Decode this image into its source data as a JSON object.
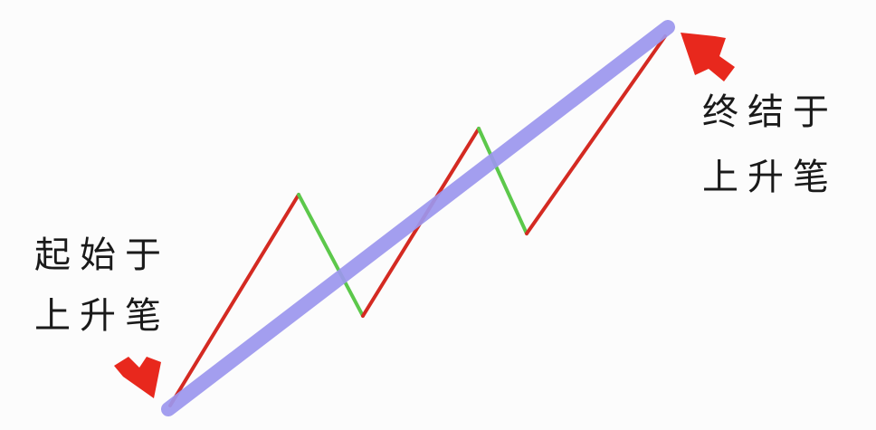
{
  "start_label": {
    "line1": "起始于",
    "line2": "上升笔"
  },
  "end_label": {
    "line1": "终结于",
    "line2": "上升笔"
  },
  "colors": {
    "up_segment": "#d42a22",
    "down_segment": "#5cc84b",
    "trend_line": "#9c97ee",
    "arrow": "#e8281d",
    "text": "#1a1a1a",
    "background": "#fcfcfc"
  },
  "diagram": {
    "segments": [
      {
        "name": "up-1",
        "direction": "up"
      },
      {
        "name": "down-1",
        "direction": "down"
      },
      {
        "name": "up-2",
        "direction": "up"
      },
      {
        "name": "down-2",
        "direction": "down"
      },
      {
        "name": "up-3",
        "direction": "up"
      }
    ],
    "arrows": [
      {
        "name": "start-arrow-icon",
        "points_to": "start"
      },
      {
        "name": "end-arrow-icon",
        "points_to": "end"
      }
    ]
  }
}
